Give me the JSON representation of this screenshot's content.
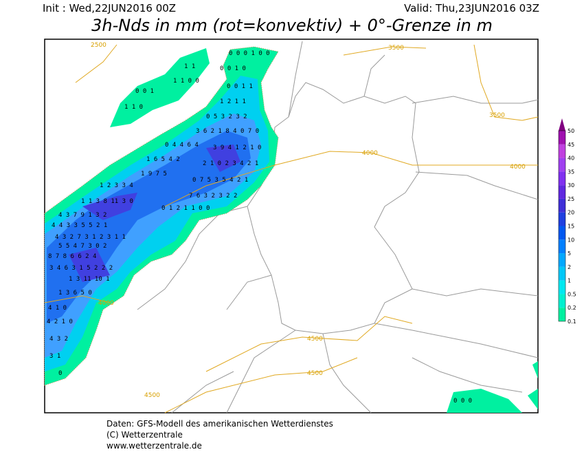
{
  "header": {
    "init": "Init : Wed,22JUN2016 00Z",
    "valid": "Valid: Thu,23JUN2016 03Z",
    "title": "3h-Nds in mm (rot=konvektiv) + 0°-Grenze in m"
  },
  "map": {
    "precip_labels": [
      "0 0 0 1 0 0",
      "0 0 1 0",
      "0 0 1 1",
      "1 1",
      "1 1 0 0",
      "0 0 1",
      "1 1 0",
      "1 2 1 1",
      "0 5 3 2 3 2",
      "3 6 2 1 8 4 0 7 0",
      "0 4 4 6 4",
      "3 9 4 1 2 1 0",
      "1 6 5 4 2",
      "2 1 0 2 3 4 2 1",
      "1 9 7 5",
      "0 7 5 3 5 4 2 1",
      "1 2 3 3 4",
      "7 6 3 2 3 2 2",
      "1 1 3 8 11 3 0",
      "0 1 2 1 1 0 0",
      "4 3 7 9 1 3 2",
      "4 4 3 3 5 5 2 1",
      "4 3 2 7 3 1 2 3 1 1",
      "5 5 4 7 3 0 2",
      "8 7 8 6 6 2 4",
      "3 4 6 3 1 5 2 2 2",
      "1 3 11 10 1",
      "1 3 6 5 0",
      "4 1 0",
      "4 2 1 0",
      "4 3 2",
      "3 1",
      "0",
      "0 0 0"
    ],
    "contour_labels": [
      "2500",
      "3500",
      "3500",
      "4000",
      "4000",
      "4000",
      "4500",
      "4500",
      "4500"
    ]
  },
  "legend": {
    "levels": [
      0.1,
      0.2,
      0.5,
      1,
      2,
      5,
      10,
      15,
      20,
      25,
      30,
      35,
      40,
      45,
      50
    ],
    "colors": [
      "#00f0a0",
      "#00f0d0",
      "#00e8f0",
      "#00c8f8",
      "#00a8ff",
      "#0080ff",
      "#0058f0",
      "#2040e0",
      "#4030d8",
      "#6028e0",
      "#8030f0",
      "#a040f0",
      "#c040e0",
      "#a010b0",
      "#800080"
    ]
  },
  "footer": [
    "Daten: GFS-Modell des amerikanischen Wetterdienstes",
    "(C) Wetterzentrale",
    "www.wetterzentrale.de"
  ]
}
